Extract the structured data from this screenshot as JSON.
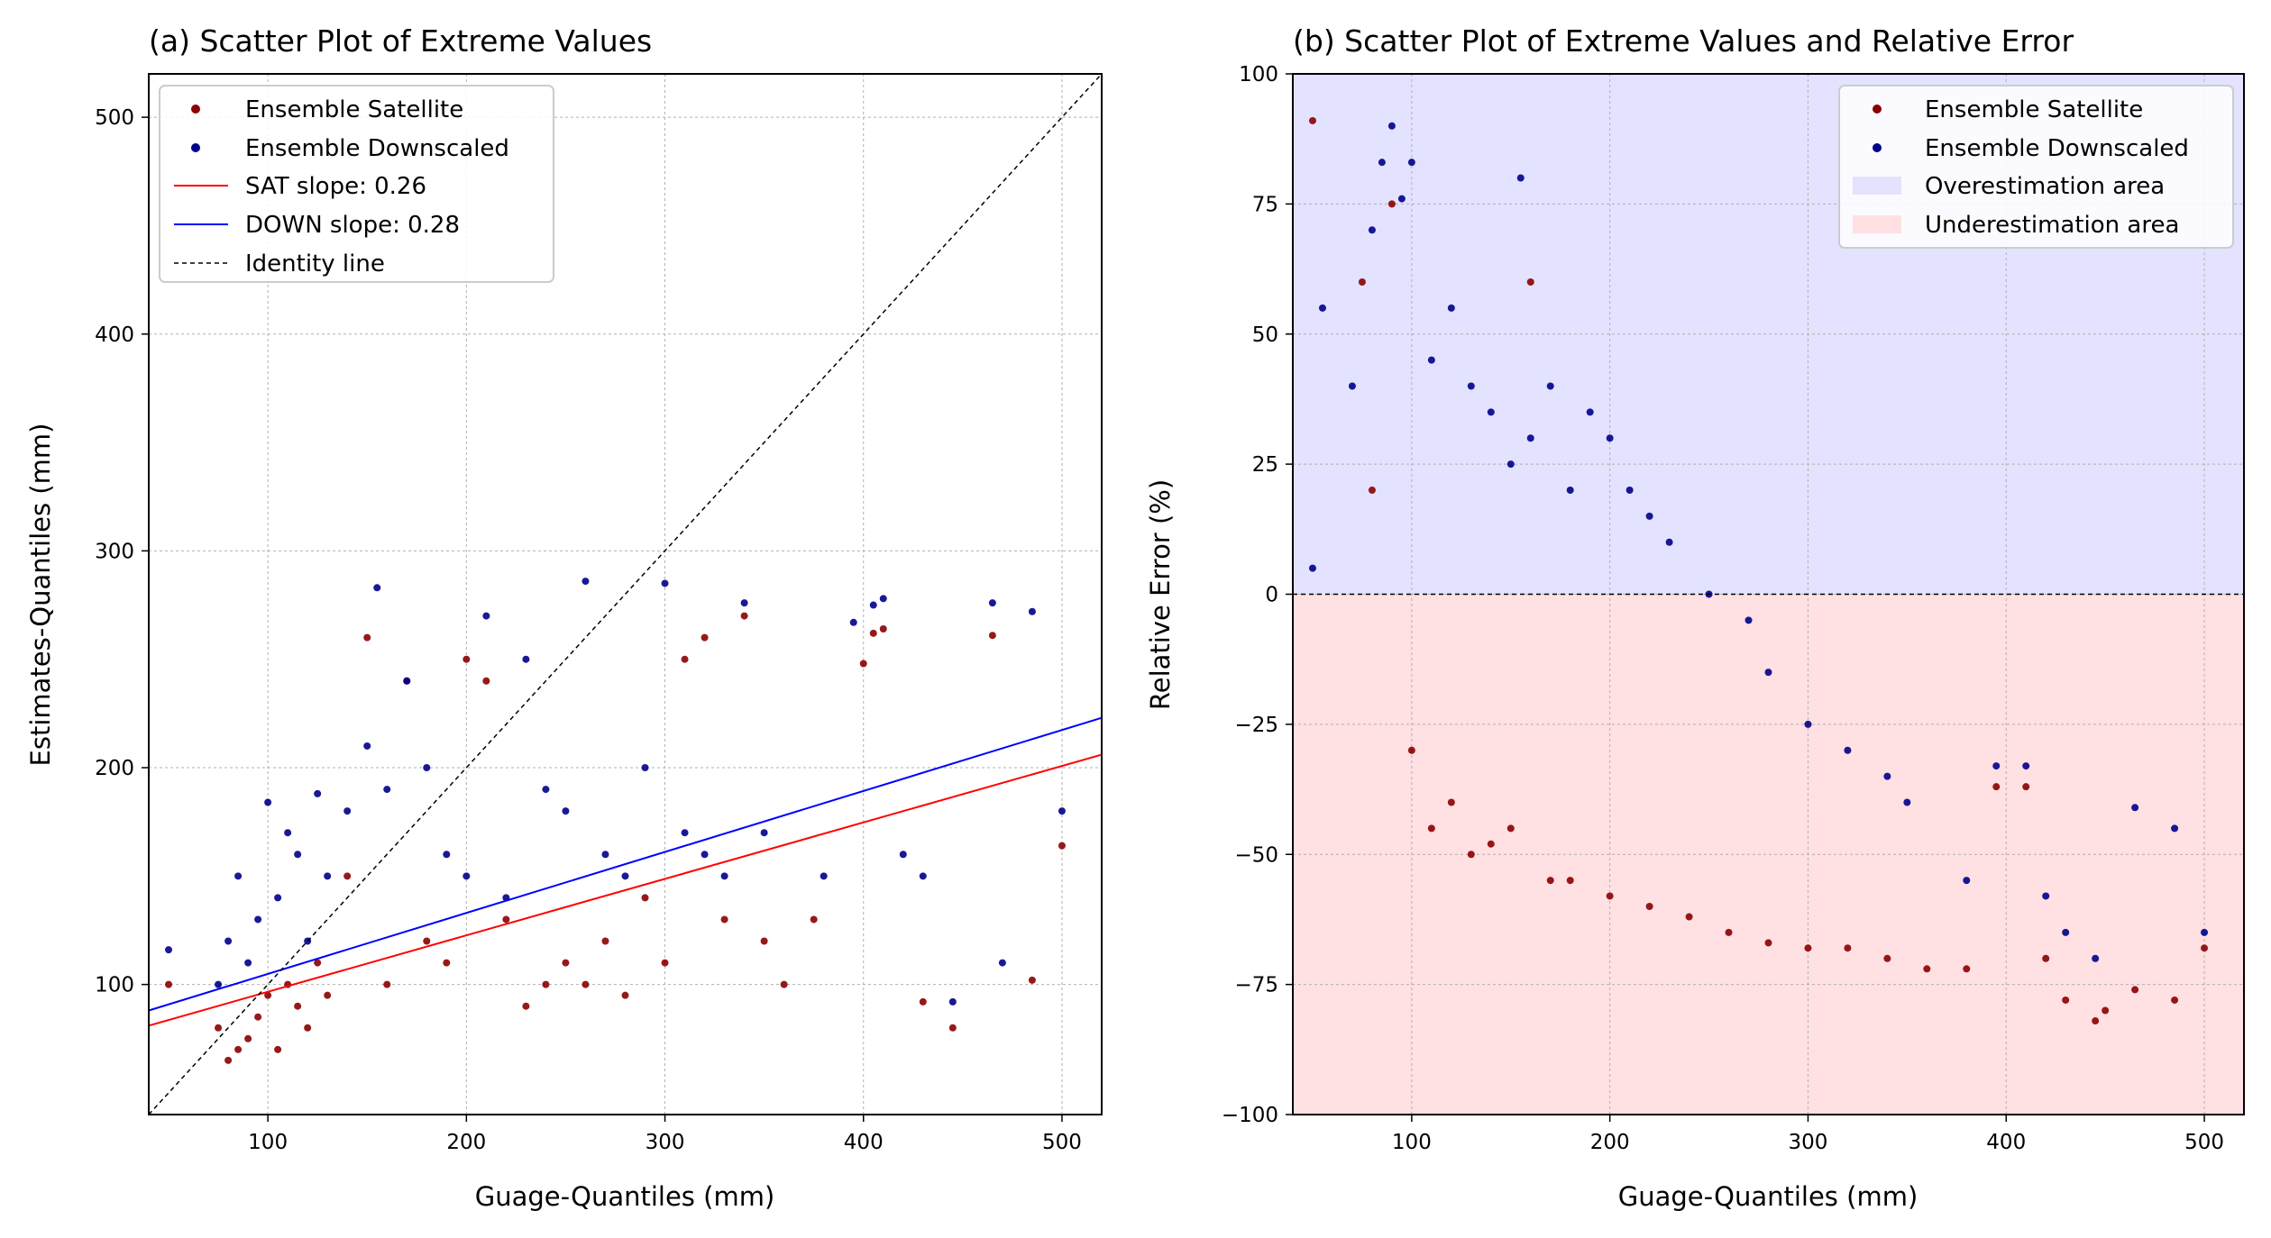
{
  "chart_data": [
    {
      "type": "scatter",
      "title": "(a) Scatter Plot of Extreme Values",
      "xlabel": "Guage-Quantiles (mm)",
      "ylabel": "Estimates-Quantiles (mm)",
      "xlim": [
        40,
        520
      ],
      "ylim": [
        40,
        520
      ],
      "xticks": [
        100,
        200,
        300,
        400,
        500
      ],
      "yticks": [
        100,
        200,
        300,
        400,
        500
      ],
      "grid": true,
      "legend_position": "top-left",
      "series": [
        {
          "name": "Ensemble Satellite",
          "color": "#8b0000",
          "kind": "points",
          "x": [
            50,
            75,
            80,
            85,
            90,
            95,
            100,
            105,
            110,
            115,
            120,
            125,
            130,
            140,
            150,
            160,
            170,
            180,
            190,
            200,
            210,
            220,
            230,
            240,
            250,
            260,
            270,
            280,
            290,
            300,
            310,
            320,
            330,
            340,
            350,
            360,
            375,
            400,
            405,
            410,
            430,
            445,
            465,
            485,
            500
          ],
          "y": [
            100,
            80,
            65,
            70,
            75,
            85,
            95,
            70,
            100,
            90,
            80,
            110,
            95,
            150,
            260,
            100,
            240,
            120,
            110,
            250,
            240,
            130,
            90,
            100,
            110,
            100,
            120,
            95,
            140,
            110,
            250,
            260,
            130,
            270,
            120,
            100,
            130,
            248,
            262,
            264,
            92,
            80,
            261,
            102,
            164
          ]
        },
        {
          "name": "Ensemble Downscaled",
          "color": "#00008b",
          "kind": "points",
          "x": [
            50,
            75,
            80,
            85,
            90,
            95,
            100,
            105,
            110,
            115,
            120,
            125,
            130,
            140,
            150,
            155,
            160,
            170,
            180,
            190,
            200,
            210,
            220,
            230,
            240,
            250,
            260,
            270,
            280,
            290,
            300,
            310,
            320,
            330,
            340,
            350,
            380,
            395,
            405,
            410,
            420,
            430,
            445,
            465,
            470,
            485,
            500
          ],
          "y": [
            116,
            100,
            120,
            150,
            110,
            130,
            184,
            140,
            170,
            160,
            120,
            188,
            150,
            180,
            210,
            283,
            190,
            240,
            200,
            160,
            150,
            270,
            140,
            250,
            190,
            180,
            286,
            160,
            150,
            200,
            285,
            170,
            160,
            150,
            276,
            170,
            150,
            267,
            275,
            278,
            160,
            150,
            92,
            276,
            110,
            272,
            180
          ]
        },
        {
          "name": "SAT slope: 0.26",
          "color": "#ff0000",
          "kind": "line",
          "x": [
            40,
            520
          ],
          "y": [
            81,
            206
          ]
        },
        {
          "name": "DOWN slope: 0.28",
          "color": "#0000ff",
          "kind": "line",
          "x": [
            40,
            520
          ],
          "y": [
            88,
            223
          ]
        },
        {
          "name": "Identity line",
          "color": "#000000",
          "kind": "dashed-line",
          "x": [
            40,
            520
          ],
          "y": [
            40,
            520
          ]
        }
      ]
    },
    {
      "type": "scatter",
      "title": "(b) Scatter Plot of Extreme Values and Relative Error",
      "xlabel": "Guage-Quantiles (mm)",
      "ylabel": "Relative Error (%)",
      "xlim": [
        40,
        520
      ],
      "ylim": [
        -100,
        100
      ],
      "xticks": [
        100,
        200,
        300,
        400,
        500
      ],
      "yticks": [
        -100,
        -75,
        -50,
        -25,
        0,
        25,
        50,
        75,
        100
      ],
      "grid": true,
      "legend_position": "top-right",
      "shaded_regions": [
        {
          "name": "Overestimation area",
          "color": "#e3e3ff",
          "y": [
            0,
            100
          ]
        },
        {
          "name": "Underestimation area",
          "color": "#ffe0e3",
          "y": [
            -100,
            0
          ]
        }
      ],
      "reference_line": {
        "y": 0,
        "style": "dashed",
        "color": "#000000"
      },
      "series": [
        {
          "name": "Ensemble Satellite",
          "color": "#8b0000",
          "kind": "points",
          "x": [
            50,
            75,
            80,
            90,
            100,
            110,
            120,
            130,
            140,
            150,
            160,
            170,
            180,
            200,
            220,
            240,
            260,
            280,
            300,
            320,
            340,
            360,
            380,
            395,
            410,
            420,
            430,
            445,
            450,
            465,
            485,
            500
          ],
          "y": [
            91,
            60,
            20,
            75,
            -30,
            -45,
            -40,
            -50,
            -48,
            -45,
            60,
            -55,
            -55,
            -58,
            -60,
            -62,
            -65,
            -67,
            -68,
            -68,
            -70,
            -72,
            -72,
            -37,
            -37,
            -70,
            -78,
            -82,
            -80,
            -76,
            -78,
            -68
          ]
        },
        {
          "name": "Ensemble Downscaled",
          "color": "#00008b",
          "kind": "points",
          "x": [
            50,
            55,
            70,
            80,
            85,
            90,
            95,
            100,
            110,
            120,
            130,
            140,
            150,
            155,
            160,
            170,
            180,
            190,
            200,
            210,
            220,
            230,
            250,
            270,
            280,
            300,
            320,
            340,
            350,
            380,
            395,
            410,
            420,
            430,
            445,
            465,
            485,
            500
          ],
          "y": [
            5,
            55,
            40,
            70,
            83,
            90,
            76,
            83,
            45,
            55,
            40,
            35,
            25,
            80,
            30,
            40,
            20,
            35,
            30,
            20,
            15,
            10,
            0,
            -5,
            -15,
            -25,
            -30,
            -35,
            -40,
            -55,
            -33,
            -33,
            -58,
            -65,
            -70,
            -41,
            -45,
            -65
          ]
        }
      ]
    }
  ]
}
